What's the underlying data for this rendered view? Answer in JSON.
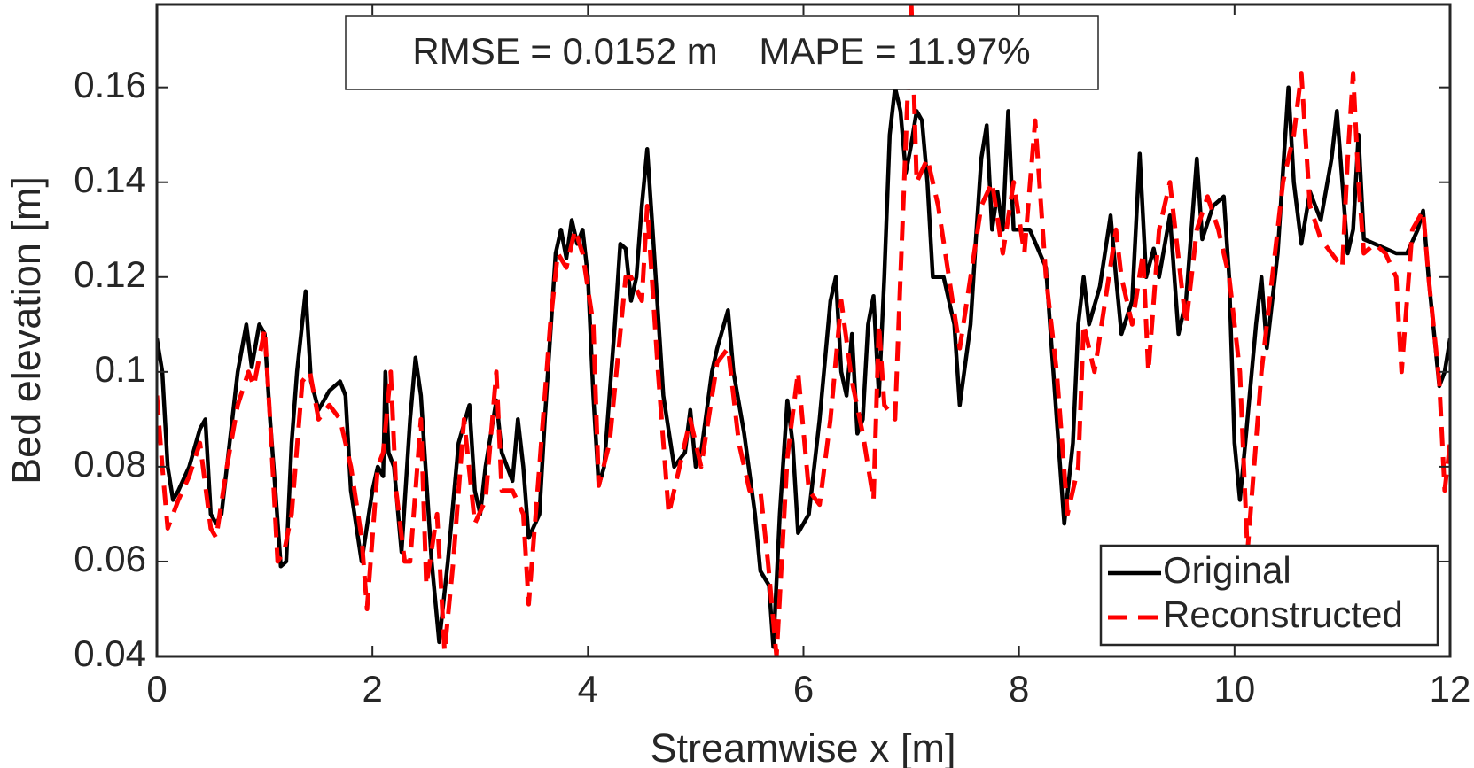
{
  "chart_data": {
    "type": "line",
    "xlabel": "Streamwise x [m]",
    "ylabel": "Bed elevation [m]",
    "annotation": "RMSE = 0.0152 m    MAPE = 11.97%",
    "xlim": [
      0,
      12
    ],
    "ylim": [
      0.04,
      0.1775
    ],
    "xticks": [
      0,
      2,
      4,
      6,
      8,
      10,
      12
    ],
    "yticks": [
      0.04,
      0.06,
      0.08,
      0.1,
      0.12,
      0.14,
      0.16
    ],
    "grid": false,
    "legend": "lower right",
    "series": [
      {
        "name": "Original",
        "color": "#000000",
        "dash": "solid",
        "x": [
          0,
          0.05,
          0.1,
          0.15,
          0.2,
          0.3,
          0.4,
          0.45,
          0.5,
          0.55,
          0.6,
          0.7,
          0.75,
          0.83,
          0.88,
          0.95,
          1.0,
          1.05,
          1.1,
          1.15,
          1.2,
          1.25,
          1.3,
          1.38,
          1.43,
          1.5,
          1.6,
          1.7,
          1.75,
          1.8,
          1.9,
          2.0,
          2.05,
          2.1,
          2.12,
          2.15,
          2.2,
          2.27,
          2.35,
          2.4,
          2.45,
          2.55,
          2.62,
          2.7,
          2.8,
          2.9,
          2.95,
          3.0,
          3.05,
          3.15,
          3.2,
          3.3,
          3.35,
          3.4,
          3.45,
          3.55,
          3.6,
          3.7,
          3.75,
          3.8,
          3.85,
          3.9,
          3.95,
          4.0,
          4.05,
          4.1,
          4.15,
          4.25,
          4.3,
          4.35,
          4.4,
          4.45,
          4.5,
          4.55,
          4.6,
          4.7,
          4.8,
          4.9,
          4.95,
          5.0,
          5.05,
          5.15,
          5.2,
          5.3,
          5.35,
          5.45,
          5.55,
          5.6,
          5.68,
          5.72,
          5.78,
          5.85,
          5.9,
          5.95,
          6.05,
          6.15,
          6.25,
          6.3,
          6.35,
          6.4,
          6.45,
          6.5,
          6.55,
          6.6,
          6.65,
          6.7,
          6.75,
          6.8,
          6.85,
          6.9,
          6.95,
          7.0,
          7.05,
          7.1,
          7.15,
          7.2,
          7.3,
          7.4,
          7.45,
          7.55,
          7.6,
          7.65,
          7.7,
          7.75,
          7.8,
          7.85,
          7.9,
          7.95,
          8.1,
          8.25,
          8.35,
          8.42,
          8.5,
          8.55,
          8.6,
          8.65,
          8.75,
          8.85,
          8.9,
          8.95,
          9.05,
          9.12,
          9.18,
          9.25,
          9.3,
          9.4,
          9.48,
          9.55,
          9.65,
          9.7,
          9.8,
          9.9,
          9.95,
          10.0,
          10.05,
          10.1,
          10.2,
          10.25,
          10.3,
          10.4,
          10.5,
          10.55,
          10.62,
          10.7,
          10.8,
          10.9,
          10.95,
          11.0,
          11.05,
          11.1,
          11.15,
          11.2,
          11.3,
          11.5,
          11.6,
          11.7,
          11.75,
          11.8,
          11.9,
          11.95,
          12.0
        ],
        "values": [
          0.107,
          0.1,
          0.08,
          0.073,
          0.075,
          0.08,
          0.088,
          0.09,
          0.07,
          0.068,
          0.07,
          0.09,
          0.1,
          0.11,
          0.101,
          0.11,
          0.108,
          0.09,
          0.075,
          0.059,
          0.06,
          0.085,
          0.1,
          0.117,
          0.098,
          0.092,
          0.096,
          0.098,
          0.095,
          0.075,
          0.06,
          0.075,
          0.08,
          0.078,
          0.1,
          0.083,
          0.08,
          0.062,
          0.09,
          0.103,
          0.095,
          0.06,
          0.043,
          0.06,
          0.085,
          0.093,
          0.075,
          0.07,
          0.08,
          0.094,
          0.083,
          0.077,
          0.09,
          0.08,
          0.065,
          0.07,
          0.09,
          0.125,
          0.13,
          0.124,
          0.132,
          0.127,
          0.13,
          0.12,
          0.095,
          0.076,
          0.08,
          0.11,
          0.127,
          0.126,
          0.115,
          0.12,
          0.135,
          0.147,
          0.13,
          0.095,
          0.08,
          0.083,
          0.092,
          0.08,
          0.083,
          0.1,
          0.105,
          0.113,
          0.1,
          0.087,
          0.07,
          0.058,
          0.055,
          0.042,
          0.07,
          0.094,
          0.085,
          0.066,
          0.07,
          0.09,
          0.115,
          0.12,
          0.1,
          0.095,
          0.108,
          0.087,
          0.09,
          0.11,
          0.116,
          0.095,
          0.12,
          0.15,
          0.16,
          0.155,
          0.142,
          0.148,
          0.155,
          0.153,
          0.14,
          0.12,
          0.12,
          0.11,
          0.093,
          0.11,
          0.128,
          0.145,
          0.152,
          0.13,
          0.138,
          0.13,
          0.155,
          0.13,
          0.13,
          0.122,
          0.09,
          0.068,
          0.085,
          0.11,
          0.12,
          0.11,
          0.118,
          0.133,
          0.12,
          0.108,
          0.115,
          0.146,
          0.12,
          0.126,
          0.12,
          0.133,
          0.108,
          0.115,
          0.145,
          0.128,
          0.135,
          0.137,
          0.12,
          0.085,
          0.073,
          0.085,
          0.11,
          0.12,
          0.105,
          0.125,
          0.16,
          0.14,
          0.127,
          0.138,
          0.132,
          0.145,
          0.155,
          0.14,
          0.125,
          0.13,
          0.15,
          0.128,
          0.127,
          0.125,
          0.125,
          0.13,
          0.134,
          0.12,
          0.097,
          0.1,
          0.107
        ]
      },
      {
        "name": "Reconstructed",
        "color": "#ff0000",
        "dash": "dashed",
        "x": [
          0,
          0.05,
          0.1,
          0.2,
          0.3,
          0.4,
          0.5,
          0.55,
          0.65,
          0.75,
          0.85,
          0.9,
          1.0,
          1.05,
          1.12,
          1.18,
          1.25,
          1.35,
          1.42,
          1.5,
          1.6,
          1.7,
          1.8,
          1.9,
          1.95,
          2.05,
          2.1,
          2.17,
          2.22,
          2.3,
          2.35,
          2.45,
          2.5,
          2.6,
          2.67,
          2.75,
          2.85,
          2.95,
          3.05,
          3.15,
          3.2,
          3.3,
          3.4,
          3.45,
          3.55,
          3.65,
          3.72,
          3.8,
          3.88,
          3.95,
          4.05,
          4.1,
          4.2,
          4.35,
          4.4,
          4.5,
          4.55,
          4.65,
          4.75,
          4.85,
          4.95,
          5.05,
          5.2,
          5.3,
          5.4,
          5.5,
          5.6,
          5.67,
          5.75,
          5.85,
          5.95,
          6.05,
          6.15,
          6.25,
          6.35,
          6.45,
          6.55,
          6.65,
          6.7,
          6.75,
          6.85,
          6.9,
          7.0,
          7.05,
          7.15,
          7.25,
          7.35,
          7.45,
          7.55,
          7.65,
          7.75,
          7.85,
          7.95,
          8.05,
          8.15,
          8.25,
          8.35,
          8.45,
          8.55,
          8.6,
          8.7,
          8.8,
          8.9,
          8.95,
          9.05,
          9.15,
          9.2,
          9.3,
          9.4,
          9.5,
          9.55,
          9.65,
          9.75,
          9.85,
          9.95,
          10.05,
          10.12,
          10.25,
          10.35,
          10.45,
          10.55,
          10.62,
          10.7,
          10.8,
          10.9,
          11.0,
          11.05,
          11.1,
          11.15,
          11.2,
          11.3,
          11.4,
          11.5,
          11.55,
          11.65,
          11.75,
          11.8,
          11.9,
          11.95,
          12.0
        ],
        "values": [
          0.095,
          0.08,
          0.067,
          0.073,
          0.078,
          0.085,
          0.067,
          0.065,
          0.08,
          0.093,
          0.1,
          0.097,
          0.109,
          0.09,
          0.06,
          0.062,
          0.07,
          0.098,
          0.1,
          0.09,
          0.093,
          0.09,
          0.08,
          0.065,
          0.05,
          0.08,
          0.083,
          0.1,
          0.075,
          0.06,
          0.06,
          0.09,
          0.055,
          0.07,
          0.041,
          0.06,
          0.09,
          0.068,
          0.073,
          0.1,
          0.075,
          0.075,
          0.07,
          0.051,
          0.08,
          0.11,
          0.125,
          0.122,
          0.13,
          0.125,
          0.11,
          0.076,
          0.085,
          0.12,
          0.12,
          0.115,
          0.135,
          0.1,
          0.07,
          0.08,
          0.09,
          0.08,
          0.102,
          0.105,
          0.085,
          0.075,
          0.075,
          0.06,
          0.04,
          0.082,
          0.1,
          0.075,
          0.072,
          0.09,
          0.115,
          0.098,
          0.087,
          0.073,
          0.11,
          0.093,
          0.09,
          0.12,
          0.178,
          0.14,
          0.145,
          0.135,
          0.12,
          0.105,
          0.12,
          0.135,
          0.14,
          0.125,
          0.14,
          0.125,
          0.153,
          0.12,
          0.1,
          0.07,
          0.08,
          0.11,
          0.1,
          0.115,
          0.13,
          0.12,
          0.11,
          0.125,
          0.1,
          0.13,
          0.14,
          0.12,
          0.11,
          0.13,
          0.137,
          0.13,
          0.12,
          0.1,
          0.062,
          0.1,
          0.12,
          0.14,
          0.15,
          0.163,
          0.135,
          0.128,
          0.125,
          0.122,
          0.145,
          0.163,
          0.14,
          0.125,
          0.127,
          0.125,
          0.12,
          0.1,
          0.13,
          0.134,
          0.12,
          0.098,
          0.075,
          0.085
        ]
      }
    ]
  }
}
